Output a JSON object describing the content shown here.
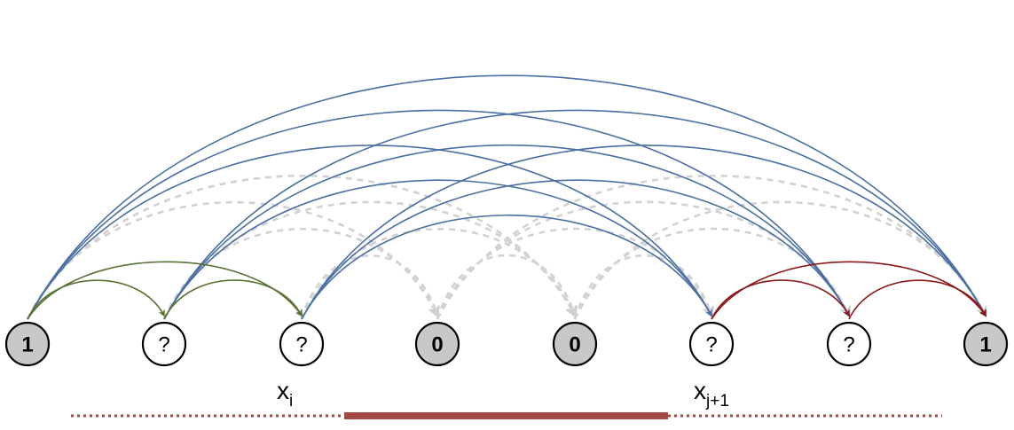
{
  "colors": {
    "known_fill": "#c8c8c8",
    "unknown_fill": "#ffffff",
    "forward_arc": "#4a6fa3",
    "background_arc": "#d2d2d2",
    "left_arc": "#5a7234",
    "right_arc": "#8a1a1a",
    "segment": "#a44a44"
  },
  "nodes": [
    {
      "label": "1",
      "known": true
    },
    {
      "label": "?",
      "known": false
    },
    {
      "label": "?",
      "known": false
    },
    {
      "label": "0",
      "known": true
    },
    {
      "label": "0",
      "known": true
    },
    {
      "label": "?",
      "known": false
    },
    {
      "label": "?",
      "known": false
    },
    {
      "label": "1",
      "known": true
    }
  ],
  "labels": {
    "xi": {
      "base": "x",
      "sub": "i"
    },
    "xj1": {
      "base": "x",
      "sub": "j+1"
    }
  },
  "edges": {
    "blue_arcs": [
      [
        0,
        5
      ],
      [
        0,
        6
      ],
      [
        0,
        7
      ],
      [
        1,
        5
      ],
      [
        1,
        6
      ],
      [
        1,
        7
      ],
      [
        2,
        5
      ],
      [
        2,
        6
      ],
      [
        2,
        7
      ]
    ],
    "green_arcs": [
      [
        0,
        1
      ],
      [
        0,
        2
      ],
      [
        1,
        2
      ]
    ],
    "red_arcs": [
      [
        5,
        6
      ],
      [
        5,
        7
      ],
      [
        6,
        7
      ]
    ],
    "gray_arcs": [
      [
        0,
        3
      ],
      [
        0,
        4
      ],
      [
        1,
        3
      ],
      [
        1,
        4
      ],
      [
        2,
        3
      ],
      [
        2,
        4
      ],
      [
        3,
        4
      ],
      [
        3,
        5
      ],
      [
        3,
        6
      ],
      [
        3,
        7
      ],
      [
        4,
        5
      ],
      [
        4,
        6
      ],
      [
        4,
        7
      ]
    ]
  }
}
